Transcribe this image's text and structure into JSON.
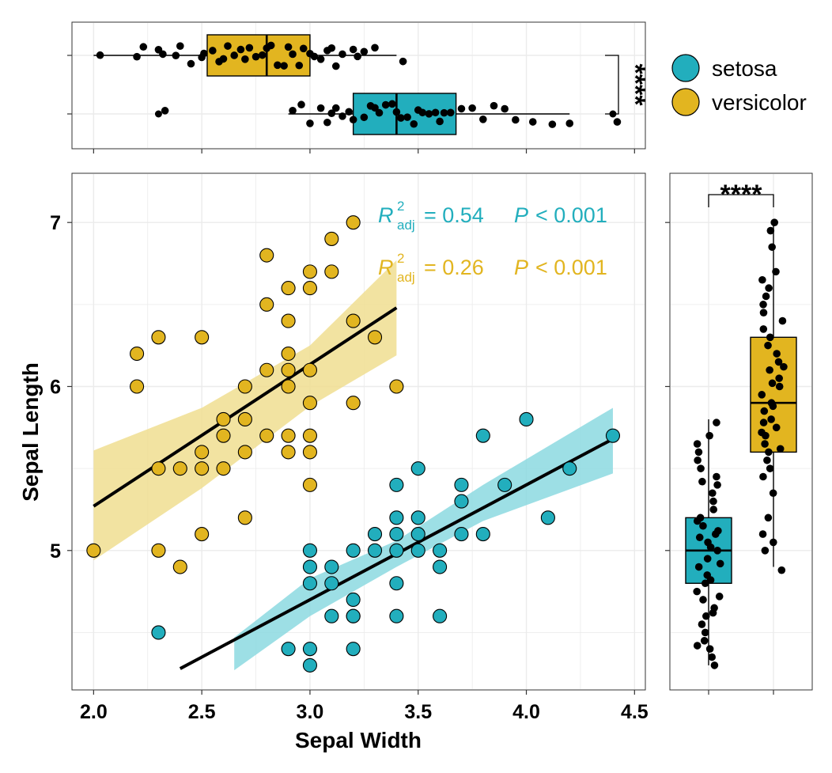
{
  "colors": {
    "setosa": "#22AEBD",
    "versicolor": "#E2B520",
    "setosa_band": "#8CD9E1",
    "versicolor_band": "#F0DE90",
    "grid": "#EBEBEB",
    "panel_border": "#333333",
    "line": "#000000"
  },
  "chart_data": [
    {
      "type": "scatter",
      "xlabel": "Sepal Width",
      "ylabel": "Sepal Length",
      "xlim": [
        1.9,
        4.55
      ],
      "ylim": [
        4.15,
        7.3
      ],
      "xticks": [
        2.0,
        2.5,
        3.0,
        3.5,
        4.0,
        4.5
      ],
      "xtick_labels": [
        "2.0",
        "2.5",
        "3.0",
        "3.5",
        "4.0",
        "4.5"
      ],
      "yticks": [
        5,
        6,
        7
      ],
      "ytick_labels": [
        "5",
        "6",
        "7"
      ],
      "grid": true,
      "series": [
        {
          "name": "setosa",
          "color_key": "setosa",
          "points": [
            [
              2.3,
              4.5
            ],
            [
              2.9,
              4.4
            ],
            [
              3.0,
              4.4
            ],
            [
              3.2,
              4.4
            ],
            [
              3.0,
              4.3
            ],
            [
              3.0,
              4.8
            ],
            [
              3.1,
              4.8
            ],
            [
              3.4,
              4.8
            ],
            [
              3.1,
              4.6
            ],
            [
              3.2,
              4.6
            ],
            [
              3.4,
              4.6
            ],
            [
              3.6,
              4.6
            ],
            [
              3.2,
              4.7
            ],
            [
              3.2,
              4.6
            ],
            [
              3.0,
              4.9
            ],
            [
              3.1,
              4.9
            ],
            [
              3.6,
              4.9
            ],
            [
              3.0,
              5.0
            ],
            [
              3.2,
              5.0
            ],
            [
              3.3,
              5.0
            ],
            [
              3.4,
              5.0
            ],
            [
              3.5,
              5.0
            ],
            [
              3.6,
              5.0
            ],
            [
              3.3,
              5.1
            ],
            [
              3.4,
              5.1
            ],
            [
              3.5,
              5.1
            ],
            [
              3.7,
              5.1
            ],
            [
              3.8,
              5.1
            ],
            [
              3.4,
              5.2
            ],
            [
              3.5,
              5.2
            ],
            [
              4.1,
              5.2
            ],
            [
              3.7,
              5.3
            ],
            [
              3.4,
              5.4
            ],
            [
              3.7,
              5.4
            ],
            [
              3.9,
              5.4
            ],
            [
              3.5,
              5.5
            ],
            [
              4.2,
              5.5
            ],
            [
              3.8,
              5.7
            ],
            [
              4.4,
              5.7
            ],
            [
              4.0,
              5.8
            ]
          ],
          "fit": {
            "x": [
              2.4,
              4.4
            ],
            "y": [
              4.28,
              5.68
            ]
          },
          "band": [
            [
              2.65,
              4.47,
              4.27
            ],
            [
              3.0,
              4.83,
              4.6
            ],
            [
              3.4,
              5.06,
              4.9
            ],
            [
              3.8,
              5.4,
              5.18
            ],
            [
              4.4,
              5.87,
              5.47
            ]
          ],
          "annotation": {
            "r2_label": "R",
            "r2_sup": "2",
            "r2_sub": "adj",
            "r2_text": "= 0.54",
            "p_label": "P",
            "p_text": "< 0.001"
          }
        },
        {
          "name": "versicolor",
          "color_key": "versicolor",
          "points": [
            [
              2.0,
              5.0
            ],
            [
              2.3,
              5.0
            ],
            [
              2.4,
              4.9
            ],
            [
              2.5,
              5.1
            ],
            [
              2.3,
              5.5
            ],
            [
              2.4,
              5.5
            ],
            [
              2.5,
              5.5
            ],
            [
              2.6,
              5.5
            ],
            [
              2.7,
              5.2
            ],
            [
              2.5,
              5.6
            ],
            [
              2.7,
              5.6
            ],
            [
              2.9,
              5.6
            ],
            [
              3.0,
              5.6
            ],
            [
              2.6,
              5.7
            ],
            [
              2.8,
              5.7
            ],
            [
              2.9,
              5.7
            ],
            [
              3.0,
              5.7
            ],
            [
              3.0,
              5.4
            ],
            [
              2.6,
              5.8
            ],
            [
              2.7,
              5.8
            ],
            [
              2.2,
              6.0
            ],
            [
              2.7,
              6.0
            ],
            [
              2.9,
              6.0
            ],
            [
              3.4,
              6.0
            ],
            [
              3.0,
              5.9
            ],
            [
              3.2,
              5.9
            ],
            [
              2.8,
              6.1
            ],
            [
              2.9,
              6.1
            ],
            [
              3.0,
              6.1
            ],
            [
              2.2,
              6.2
            ],
            [
              2.9,
              6.2
            ],
            [
              2.3,
              6.3
            ],
            [
              2.5,
              6.3
            ],
            [
              3.3,
              6.3
            ],
            [
              2.9,
              6.4
            ],
            [
              3.2,
              6.4
            ],
            [
              2.8,
              6.5
            ],
            [
              2.9,
              6.6
            ],
            [
              3.0,
              6.6
            ],
            [
              3.0,
              6.7
            ],
            [
              3.1,
              6.7
            ],
            [
              2.8,
              6.8
            ],
            [
              3.1,
              6.9
            ],
            [
              3.2,
              7.0
            ]
          ],
          "fit": {
            "x": [
              2.0,
              3.4
            ],
            "y": [
              5.27,
              6.48
            ]
          },
          "band": [
            [
              2.0,
              5.61,
              4.94
            ],
            [
              2.5,
              5.87,
              5.38
            ],
            [
              3.0,
              6.25,
              5.88
            ],
            [
              3.4,
              6.77,
              6.19
            ]
          ],
          "annotation": {
            "r2_label": "R",
            "r2_sup": "2",
            "r2_sub": "adj",
            "r2_text": "= 0.26",
            "p_label": "P",
            "p_text": "< 0.001"
          }
        }
      ]
    },
    {
      "type": "boxplot",
      "orientation": "horizontal",
      "variable": "Sepal Width",
      "significance": "****",
      "boxes": [
        {
          "name": "versicolor",
          "color_key": "versicolor",
          "whisker_low": 2.0,
          "q1": 2.525,
          "median": 2.8,
          "q3": 3.0,
          "whisker_high": 3.4
        },
        {
          "name": "setosa",
          "color_key": "setosa",
          "whisker_low": 2.9,
          "q1": 3.2,
          "median": 3.4,
          "q3": 3.675,
          "whisker_high": 4.2,
          "outliers": [
            2.3,
            4.4
          ]
        }
      ],
      "jitter": {
        "versicolor": [
          2.03,
          2.2,
          2.23,
          2.3,
          2.32,
          2.38,
          2.4,
          2.45,
          2.5,
          2.51,
          2.55,
          2.58,
          2.6,
          2.62,
          2.65,
          2.68,
          2.7,
          2.72,
          2.75,
          2.78,
          2.8,
          2.82,
          2.85,
          2.88,
          2.9,
          2.92,
          2.95,
          2.97,
          3.0,
          3.02,
          3.05,
          3.08,
          3.1,
          3.12,
          3.15,
          3.2,
          3.22,
          3.25,
          3.3,
          3.43
        ],
        "setosa": [
          2.33,
          2.92,
          2.96,
          3.0,
          3.05,
          3.08,
          3.1,
          3.12,
          3.15,
          3.18,
          3.2,
          3.25,
          3.28,
          3.3,
          3.32,
          3.35,
          3.38,
          3.4,
          3.42,
          3.45,
          3.48,
          3.5,
          3.52,
          3.55,
          3.58,
          3.6,
          3.62,
          3.65,
          3.7,
          3.75,
          3.8,
          3.85,
          3.9,
          3.95,
          4.03,
          4.12,
          4.2,
          4.42
        ]
      }
    },
    {
      "type": "boxplot",
      "orientation": "vertical",
      "variable": "Sepal Length",
      "significance": "****",
      "boxes": [
        {
          "name": "setosa",
          "color_key": "setosa",
          "whisker_low": 4.3,
          "q1": 4.8,
          "median": 5.0,
          "q3": 5.2,
          "whisker_high": 5.8
        },
        {
          "name": "versicolor",
          "color_key": "versicolor",
          "whisker_low": 4.9,
          "q1": 5.6,
          "median": 5.9,
          "q3": 6.3,
          "whisker_high": 7.0
        }
      ],
      "jitter": {
        "setosa": [
          4.3,
          4.35,
          4.4,
          4.42,
          4.45,
          4.5,
          4.55,
          4.6,
          4.62,
          4.65,
          4.7,
          4.72,
          4.75,
          4.8,
          4.82,
          4.85,
          4.9,
          4.92,
          4.95,
          5.0,
          5.02,
          5.05,
          5.08,
          5.1,
          5.12,
          5.15,
          5.18,
          5.2,
          5.25,
          5.3,
          5.35,
          5.4,
          5.42,
          5.45,
          5.5,
          5.55,
          5.6,
          5.65,
          5.7,
          5.78
        ],
        "versicolor": [
          4.88,
          5.0,
          5.05,
          5.1,
          5.2,
          5.35,
          5.45,
          5.5,
          5.55,
          5.6,
          5.62,
          5.65,
          5.7,
          5.72,
          5.75,
          5.78,
          5.8,
          5.85,
          5.88,
          5.9,
          5.95,
          6.0,
          6.02,
          6.05,
          6.1,
          6.12,
          6.15,
          6.2,
          6.25,
          6.3,
          6.35,
          6.4,
          6.45,
          6.5,
          6.55,
          6.6,
          6.65,
          6.7,
          6.85,
          6.95,
          7.0
        ]
      }
    }
  ],
  "legend": {
    "placement": "top-right",
    "items": [
      {
        "label": "setosa",
        "color_key": "setosa"
      },
      {
        "label": "versicolor",
        "color_key": "versicolor"
      }
    ]
  }
}
